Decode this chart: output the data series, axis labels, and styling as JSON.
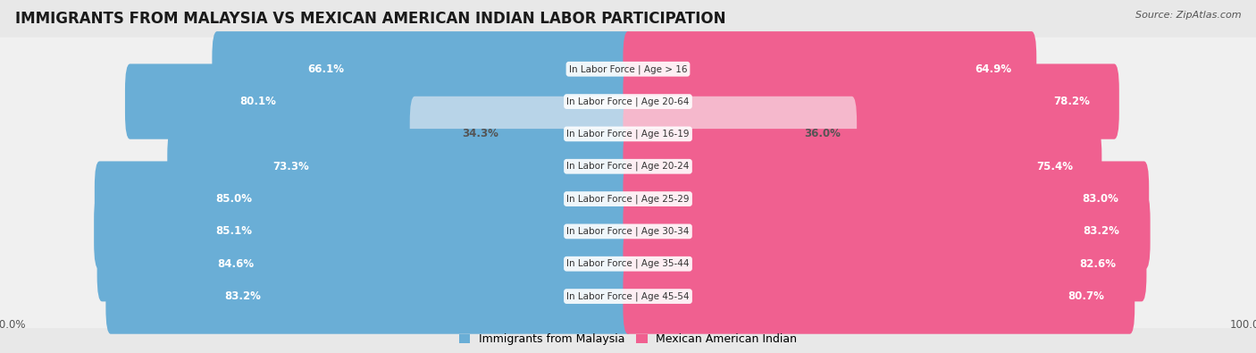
{
  "title": "IMMIGRANTS FROM MALAYSIA VS MEXICAN AMERICAN INDIAN LABOR PARTICIPATION",
  "source": "Source: ZipAtlas.com",
  "categories": [
    "In Labor Force | Age > 16",
    "In Labor Force | Age 20-64",
    "In Labor Force | Age 16-19",
    "In Labor Force | Age 20-24",
    "In Labor Force | Age 25-29",
    "In Labor Force | Age 30-34",
    "In Labor Force | Age 35-44",
    "In Labor Force | Age 45-54"
  ],
  "malaysia_values": [
    66.1,
    80.1,
    34.3,
    73.3,
    85.0,
    85.1,
    84.6,
    83.2
  ],
  "mexican_values": [
    64.9,
    78.2,
    36.0,
    75.4,
    83.0,
    83.2,
    82.6,
    80.7
  ],
  "malaysia_color": "#6aaed6",
  "malaysia_color_light": "#b8d4e8",
  "mexican_color": "#f06090",
  "mexican_color_light": "#f5b8cc",
  "label_white": "#ffffff",
  "label_dark": "#555555",
  "bg_color": "#e8e8e8",
  "row_bg_even": "#f5f5f5",
  "row_bg_odd": "#ebebeb",
  "max_value": 100.0,
  "legend_malaysia": "Immigrants from Malaysia",
  "legend_mexican": "Mexican American Indian",
  "title_fontsize": 12,
  "source_fontsize": 8,
  "tick_label_fontsize": 8.5,
  "bar_label_fontsize": 8.5,
  "cat_label_fontsize": 7.5,
  "threshold_light": 45
}
